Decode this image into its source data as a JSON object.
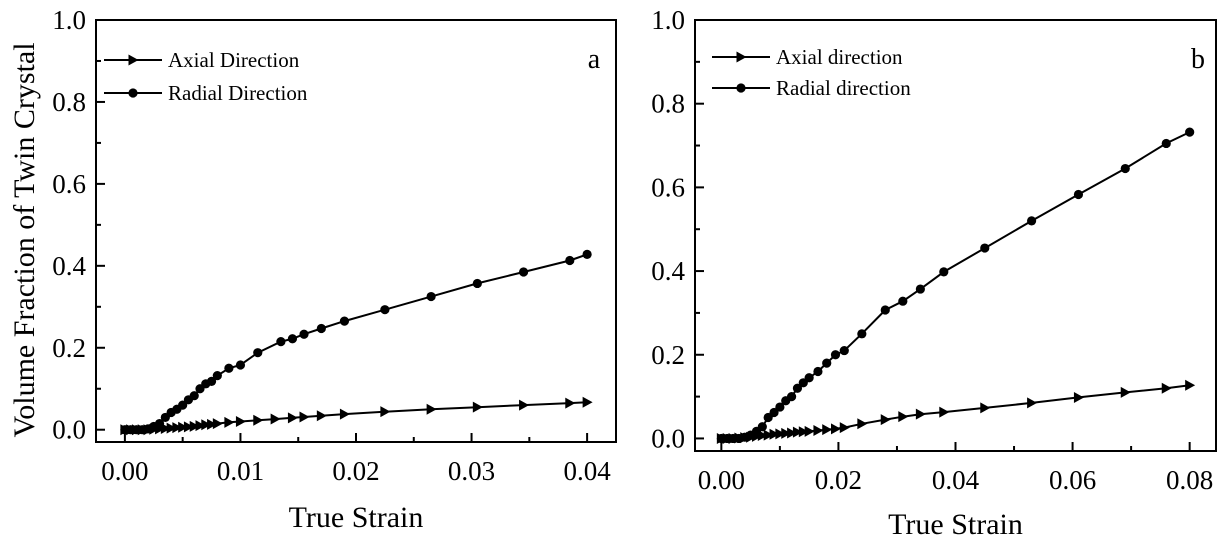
{
  "chart_data": [
    {
      "type": "line",
      "panel_label": "a",
      "title": "",
      "xlabel": "True Strain",
      "ylabel": "Volume Fraction of Twin Crystal",
      "xlim": [
        -0.0025,
        0.0425
      ],
      "ylim": [
        -0.03,
        1.0
      ],
      "xticks": [
        0.0,
        0.01,
        0.02,
        0.03,
        0.04
      ],
      "xtick_labels": [
        "0.00",
        "0.01",
        "0.02",
        "0.03",
        "0.04"
      ],
      "yticks": [
        0.0,
        0.2,
        0.4,
        0.6,
        0.8,
        1.0
      ],
      "ytick_labels": [
        "0.0",
        "0.2",
        "0.4",
        "0.6",
        "0.8",
        "1.0"
      ],
      "legend_position": "top-left",
      "grid": false,
      "series": [
        {
          "name": "Axial  Direction",
          "marker": "triangle-right",
          "x": [
            0.0,
            0.0005,
            0.001,
            0.0015,
            0.002,
            0.0025,
            0.003,
            0.0035,
            0.004,
            0.0045,
            0.005,
            0.0055,
            0.006,
            0.0065,
            0.007,
            0.0075,
            0.008,
            0.009,
            0.01,
            0.0115,
            0.013,
            0.0145,
            0.0155,
            0.017,
            0.019,
            0.0225,
            0.0265,
            0.0305,
            0.0345,
            0.0385,
            0.04
          ],
          "y": [
            0.0,
            0.0,
            0.0,
            0.0,
            0.0,
            0.001,
            0.002,
            0.003,
            0.004,
            0.005,
            0.006,
            0.007,
            0.008,
            0.01,
            0.012,
            0.013,
            0.015,
            0.018,
            0.02,
            0.023,
            0.026,
            0.029,
            0.031,
            0.034,
            0.038,
            0.044,
            0.05,
            0.055,
            0.06,
            0.065,
            0.067
          ]
        },
        {
          "name": "Radial Direction",
          "marker": "circle",
          "x": [
            0.0,
            0.0005,
            0.001,
            0.0015,
            0.002,
            0.0025,
            0.003,
            0.0035,
            0.004,
            0.0045,
            0.005,
            0.0055,
            0.006,
            0.0065,
            0.007,
            0.0075,
            0.008,
            0.009,
            0.01,
            0.0115,
            0.0135,
            0.0145,
            0.0155,
            0.017,
            0.019,
            0.0225,
            0.0265,
            0.0305,
            0.0345,
            0.0385,
            0.04
          ],
          "y": [
            0.0,
            0.0,
            0.0,
            0.0,
            0.002,
            0.008,
            0.015,
            0.03,
            0.042,
            0.05,
            0.06,
            0.073,
            0.083,
            0.1,
            0.112,
            0.118,
            0.132,
            0.15,
            0.158,
            0.188,
            0.215,
            0.222,
            0.233,
            0.247,
            0.265,
            0.293,
            0.325,
            0.357,
            0.385,
            0.413,
            0.428
          ]
        }
      ]
    },
    {
      "type": "line",
      "panel_label": "b",
      "title": "",
      "xlabel": "True Strain",
      "ylabel": "",
      "xlim": [
        -0.0045,
        0.0845
      ],
      "ylim": [
        -0.03,
        1.0
      ],
      "xticks": [
        0.0,
        0.02,
        0.04,
        0.06,
        0.08
      ],
      "xtick_labels": [
        "0.00",
        "0.02",
        "0.04",
        "0.06",
        "0.08"
      ],
      "yticks": [
        0.0,
        0.2,
        0.4,
        0.6,
        0.8,
        1.0
      ],
      "ytick_labels": [
        "0.0",
        "0.2",
        "0.4",
        "0.6",
        "0.8",
        "1.0"
      ],
      "legend_position": "top-left",
      "grid": false,
      "series": [
        {
          "name": "Axial direction",
          "marker": "triangle-right",
          "x": [
            0.0,
            0.001,
            0.002,
            0.003,
            0.004,
            0.005,
            0.006,
            0.007,
            0.008,
            0.009,
            0.01,
            0.011,
            0.012,
            0.013,
            0.014,
            0.015,
            0.0165,
            0.018,
            0.0195,
            0.021,
            0.024,
            0.028,
            0.031,
            0.034,
            0.038,
            0.045,
            0.053,
            0.061,
            0.069,
            0.076,
            0.08
          ],
          "y": [
            0.0,
            0.0,
            0.0,
            0.001,
            0.002,
            0.003,
            0.005,
            0.007,
            0.008,
            0.01,
            0.011,
            0.012,
            0.013,
            0.015,
            0.016,
            0.017,
            0.019,
            0.021,
            0.023,
            0.026,
            0.035,
            0.045,
            0.052,
            0.058,
            0.063,
            0.073,
            0.085,
            0.098,
            0.11,
            0.12,
            0.127
          ]
        },
        {
          "name": "Radial direction",
          "marker": "circle",
          "x": [
            0.0,
            0.001,
            0.002,
            0.003,
            0.004,
            0.005,
            0.006,
            0.007,
            0.008,
            0.009,
            0.01,
            0.011,
            0.012,
            0.013,
            0.014,
            0.015,
            0.0165,
            0.018,
            0.0195,
            0.021,
            0.024,
            0.028,
            0.031,
            0.034,
            0.038,
            0.045,
            0.053,
            0.061,
            0.069,
            0.076,
            0.08
          ],
          "y": [
            0.0,
            0.0,
            0.0,
            0.0,
            0.003,
            0.008,
            0.017,
            0.028,
            0.05,
            0.062,
            0.075,
            0.09,
            0.1,
            0.12,
            0.133,
            0.145,
            0.16,
            0.18,
            0.2,
            0.21,
            0.25,
            0.307,
            0.328,
            0.357,
            0.398,
            0.455,
            0.52,
            0.583,
            0.645,
            0.705,
            0.732
          ]
        }
      ]
    }
  ]
}
